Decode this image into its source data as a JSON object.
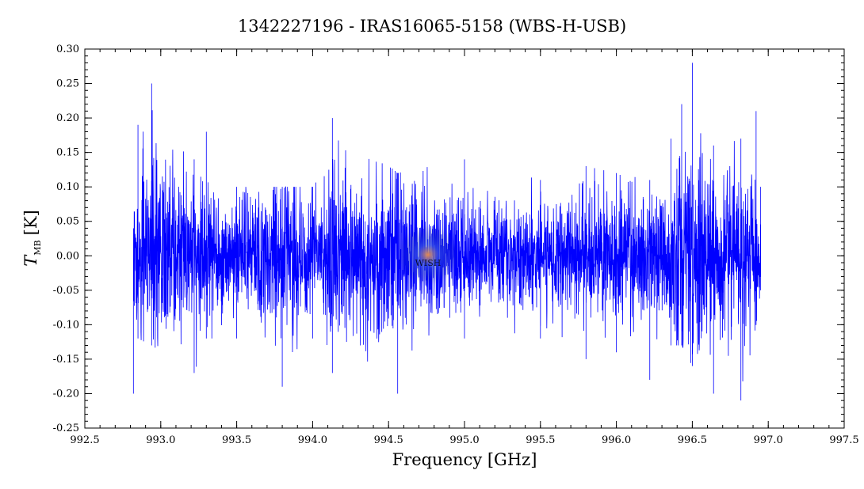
{
  "chart_data": {
    "type": "line",
    "title": "1342227196 - IRAS16065-5158 (WBS-H-USB)",
    "xlabel": "Frequency [GHz]",
    "ylabel": {
      "symbol": "T",
      "subscript": "MB",
      "unit": "[K]"
    },
    "xlim": [
      992.5,
      997.5
    ],
    "ylim": [
      -0.25,
      0.3
    ],
    "x_ticks": [
      "992.5",
      "993.0",
      "993.5",
      "994.0",
      "994.5",
      "995.0",
      "995.5",
      "996.0",
      "996.5",
      "997.0",
      "997.5"
    ],
    "y_ticks": [
      "-0.25",
      "-0.20",
      "-0.15",
      "-0.10",
      "-0.05",
      "0.00",
      "0.05",
      "0.10",
      "0.15",
      "0.20",
      "0.25",
      "0.30"
    ],
    "grid": false,
    "legend": "none",
    "series": [
      {
        "color": "#0000ff",
        "x_range": [
          992.82,
          996.95
        ],
        "noise_envelope": [
          {
            "x": 992.82,
            "ymin": -0.2,
            "ymax": 0.04
          },
          {
            "x": 992.85,
            "ymin": -0.12,
            "ymax": 0.19
          },
          {
            "x": 992.94,
            "ymin": -0.13,
            "ymax": 0.25
          },
          {
            "x": 993.22,
            "ymin": -0.17,
            "ymax": 0.14
          },
          {
            "x": 993.3,
            "ymin": -0.12,
            "ymax": 0.18
          },
          {
            "x": 993.5,
            "ymin": -0.12,
            "ymax": 0.1
          },
          {
            "x": 993.8,
            "ymin": -0.19,
            "ymax": 0.1
          },
          {
            "x": 994.0,
            "ymin": -0.12,
            "ymax": 0.1
          },
          {
            "x": 994.13,
            "ymin": -0.17,
            "ymax": 0.2
          },
          {
            "x": 994.56,
            "ymin": -0.2,
            "ymax": 0.12
          },
          {
            "x": 995.0,
            "ymin": -0.12,
            "ymax": 0.14
          },
          {
            "x": 995.5,
            "ymin": -0.12,
            "ymax": 0.11
          },
          {
            "x": 995.8,
            "ymin": -0.15,
            "ymax": 0.13
          },
          {
            "x": 996.0,
            "ymin": -0.14,
            "ymax": 0.12
          },
          {
            "x": 996.22,
            "ymin": -0.18,
            "ymax": 0.11
          },
          {
            "x": 996.36,
            "ymin": -0.13,
            "ymax": 0.17
          },
          {
            "x": 996.43,
            "ymin": -0.13,
            "ymax": 0.22
          },
          {
            "x": 996.5,
            "ymin": -0.16,
            "ymax": 0.28
          },
          {
            "x": 996.64,
            "ymin": -0.2,
            "ymax": 0.16
          },
          {
            "x": 996.82,
            "ymin": -0.21,
            "ymax": 0.17
          },
          {
            "x": 996.92,
            "ymin": -0.1,
            "ymax": 0.21
          },
          {
            "x": 996.95,
            "ymin": -0.05,
            "ymax": 0.1
          }
        ],
        "rms": 0.045
      }
    ],
    "watermark_text": "WISH"
  }
}
